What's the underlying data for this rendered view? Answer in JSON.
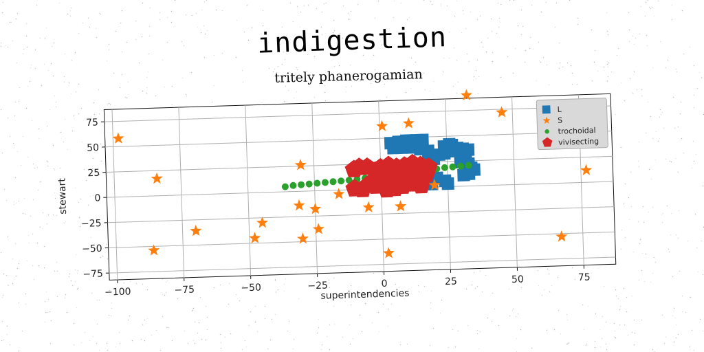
{
  "title": "indigestion",
  "subtitle": "tritely phanerogamian",
  "chart_data": {
    "type": "scatter",
    "xlabel": "superintendencies",
    "ylabel": "stewart",
    "xlim": [
      -103,
      87
    ],
    "ylim": [
      -82,
      87
    ],
    "xticks": [
      -100,
      -75,
      -50,
      -25,
      0,
      25,
      50,
      75
    ],
    "yticks": [
      -75,
      -50,
      -25,
      0,
      25,
      50,
      75
    ],
    "grid": true,
    "legend_position": "top-right",
    "series": [
      {
        "name": "L",
        "marker": "square",
        "color": "#1f77b4",
        "points": [
          [
            4,
            45
          ],
          [
            7,
            46
          ],
          [
            10,
            47
          ],
          [
            12,
            46
          ],
          [
            14,
            47
          ],
          [
            16,
            47
          ],
          [
            5,
            40
          ],
          [
            8,
            40
          ],
          [
            12,
            40
          ],
          [
            15,
            38
          ],
          [
            18,
            36
          ],
          [
            22,
            32
          ],
          [
            20,
            28
          ],
          [
            17,
            24
          ],
          [
            14,
            18
          ],
          [
            12,
            12
          ],
          [
            15,
            12
          ],
          [
            18,
            10
          ],
          [
            21,
            9
          ],
          [
            24,
            6
          ],
          [
            25,
            3
          ],
          [
            19,
            3
          ],
          [
            16,
            5
          ],
          [
            13,
            5
          ],
          [
            24,
            40
          ],
          [
            26,
            42
          ],
          [
            27,
            41
          ],
          [
            29,
            38
          ],
          [
            31,
            37
          ],
          [
            33,
            36
          ],
          [
            30,
            32
          ],
          [
            32,
            26
          ],
          [
            33,
            22
          ],
          [
            30,
            24
          ],
          [
            34,
            18
          ],
          [
            35,
            16
          ],
          [
            33,
            12
          ],
          [
            31,
            11
          ],
          [
            26,
            35
          ],
          [
            24,
            33
          ]
        ]
      },
      {
        "name": "S",
        "marker": "star",
        "color": "#ff7f0e",
        "points": [
          [
            -98,
            58
          ],
          [
            -84,
            17
          ],
          [
            -70,
            -36
          ],
          [
            -86,
            -54
          ],
          [
            -48,
            -45
          ],
          [
            -45,
            -30
          ],
          [
            -30,
            -47
          ],
          [
            -31,
            -14
          ],
          [
            -25,
            -18
          ],
          [
            -24,
            -38
          ],
          [
            -30,
            26
          ],
          [
            -16,
            -4
          ],
          [
            -5,
            -18
          ],
          [
            1,
            62
          ],
          [
            11,
            64
          ],
          [
            7,
            -18
          ],
          [
            20,
            2
          ],
          [
            2,
            -64
          ],
          [
            33,
            90
          ],
          [
            46,
            72
          ],
          [
            77,
            12
          ],
          [
            67,
            -53
          ]
        ]
      },
      {
        "name": "trochoidal",
        "marker": "circle",
        "color": "#2ca02c",
        "points": [
          [
            -36,
            5
          ],
          [
            -33,
            6
          ],
          [
            -30,
            6.5
          ],
          [
            -27,
            7
          ],
          [
            -24,
            7.5
          ],
          [
            -21,
            8
          ],
          [
            -18,
            8.5
          ],
          [
            -15,
            9
          ],
          [
            -12,
            9.5
          ],
          [
            -9,
            10
          ],
          [
            -6,
            11
          ],
          [
            -3,
            11.5
          ],
          [
            0,
            12
          ],
          [
            3,
            13
          ],
          [
            6,
            13.5
          ],
          [
            9,
            14
          ],
          [
            12,
            15
          ],
          [
            15,
            16
          ],
          [
            18,
            17
          ],
          [
            21,
            18
          ],
          [
            24,
            19
          ],
          [
            27,
            19.5
          ],
          [
            30,
            20
          ],
          [
            33,
            20.5
          ]
        ]
      },
      {
        "name": "vivisecting",
        "marker": "pentagon",
        "color": "#d62728",
        "points": [
          [
            -10,
            20
          ],
          [
            -8,
            22
          ],
          [
            -5,
            22
          ],
          [
            -2,
            18
          ],
          [
            0,
            21
          ],
          [
            3,
            23
          ],
          [
            6,
            21
          ],
          [
            9,
            22
          ],
          [
            12,
            24
          ],
          [
            15,
            22
          ],
          [
            18,
            20
          ],
          [
            17,
            13
          ],
          [
            14,
            6
          ],
          [
            15,
            2
          ],
          [
            11,
            4
          ],
          [
            8,
            2
          ],
          [
            5,
            0
          ],
          [
            2,
            -1
          ],
          [
            -2,
            3
          ],
          [
            -5,
            4
          ],
          [
            -7,
            0
          ],
          [
            -10,
            1
          ],
          [
            -3,
            8
          ],
          [
            0,
            8
          ],
          [
            4,
            10
          ],
          [
            8,
            12
          ],
          [
            12,
            15
          ],
          [
            16,
            17
          ],
          [
            6,
            17
          ],
          [
            2,
            14
          ]
        ]
      }
    ]
  }
}
